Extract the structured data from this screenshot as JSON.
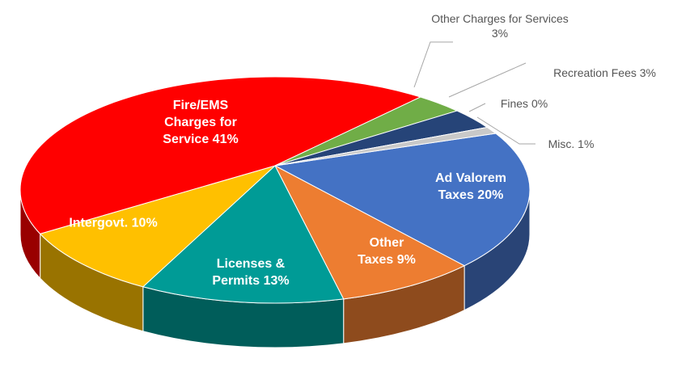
{
  "chart_data": {
    "type": "pie",
    "categories": [
      "Ad Valorem Taxes",
      "Other Taxes",
      "Licenses & Permits",
      "Intergovt.",
      "Fire/EMS Charges for Service",
      "Other Charges for Services",
      "Recreation Fees",
      "Fines",
      "Misc."
    ],
    "values": [
      20,
      9,
      13,
      10,
      41,
      3,
      3,
      0,
      1
    ],
    "value_labels": [
      "20%",
      "9%",
      "13%",
      "10%",
      "41%",
      "3%",
      "3%",
      "0%",
      "1%"
    ],
    "colors": [
      "#4472c4",
      "#ed7d31",
      "#009b96",
      "#ffc000",
      "#ff0000",
      "#70ad47",
      "#264478",
      "#9e480e",
      "#c9c9c9"
    ]
  }
}
